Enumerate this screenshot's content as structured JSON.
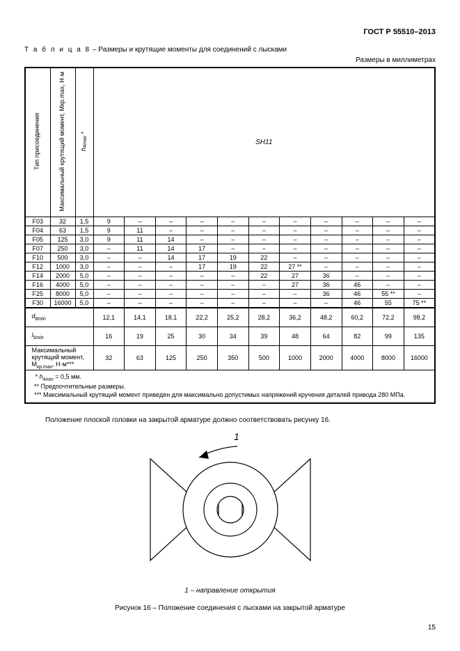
{
  "doc_id": "ГОСТ Р 55510–2013",
  "table_title_prefix": "Т а б л и ц а  8",
  "table_title_rest": " – Размеры и крутящие моменты для соединений с лысками",
  "units_label": "Размеры в миллиметрах",
  "headers": {
    "col1": "Тип присоединения",
    "col2": "Максимальный крутящий момент, Mкр.max, Н·м",
    "col3": "h4max *",
    "sh11": "SH11"
  },
  "rows": [
    {
      "c1": "F03",
      "c2": "32",
      "c3": "1,5",
      "v": [
        "9",
        "–",
        "–",
        "–",
        "–",
        "–",
        "–",
        "–",
        "–",
        "–",
        "–"
      ]
    },
    {
      "c1": "F04",
      "c2": "63",
      "c3": "1,5",
      "v": [
        "9",
        "11",
        "–",
        "–",
        "–",
        "–",
        "–",
        "–",
        "–",
        "–",
        "–"
      ]
    },
    {
      "c1": "F05",
      "c2": "125",
      "c3": "3,0",
      "v": [
        "9",
        "11",
        "14",
        "–",
        "–",
        "–",
        "–",
        "–",
        "–",
        "–",
        "–"
      ]
    },
    {
      "c1": "F07",
      "c2": "250",
      "c3": "3,0",
      "v": [
        "–",
        "11",
        "14",
        "17",
        "–",
        "–",
        "–",
        "–",
        "–",
        "–",
        "–"
      ]
    },
    {
      "c1": "F10",
      "c2": "500",
      "c3": "3,0",
      "v": [
        "–",
        "–",
        "14",
        "17",
        "19",
        "22",
        "–",
        "–",
        "–",
        "–",
        "–"
      ]
    },
    {
      "c1": "F12",
      "c2": "1000",
      "c3": "3,0",
      "v": [
        "–",
        "–",
        "–",
        "17",
        "19",
        "22",
        "27 **",
        "–",
        "–",
        "–",
        "–"
      ]
    },
    {
      "c1": "F14",
      "c2": "2000",
      "c3": "5,0",
      "v": [
        "–",
        "–",
        "–",
        "–",
        "–",
        "22",
        "27",
        "36",
        "–",
        "–",
        "–"
      ]
    },
    {
      "c1": "F16",
      "c2": "4000",
      "c3": "5,0",
      "v": [
        "–",
        "–",
        "–",
        "–",
        "–",
        "–",
        "27",
        "36",
        "46",
        "–",
        "–"
      ]
    },
    {
      "c1": "F25",
      "c2": "8000",
      "c3": "5,0",
      "v": [
        "–",
        "–",
        "–",
        "–",
        "–",
        "–",
        "–",
        "36",
        "46",
        "55 **",
        "–"
      ]
    },
    {
      "c1": "F30",
      "c2": "16000",
      "c3": "5,0",
      "v": [
        "–",
        "–",
        "–",
        "–",
        "–",
        "–",
        "–",
        "–",
        "46",
        "55",
        "75 **"
      ]
    }
  ],
  "aux_rows": [
    {
      "label": "d8min",
      "v": [
        "12,1",
        "14,1",
        "18,1",
        "22,2",
        "25,2",
        "28,2",
        "36,2",
        "48,2",
        "60,2",
        "72,2",
        "98,2"
      ]
    },
    {
      "label": "l5min",
      "v": [
        "16",
        "19",
        "25",
        "30",
        "34",
        "39",
        "48",
        "64",
        "82",
        "99",
        "135"
      ]
    },
    {
      "label": "Максимальный крутящий момент, Mкр.max, Н·м***",
      "v": [
        "32",
        "63",
        "125",
        "250",
        "350",
        "500",
        "1000",
        "2000",
        "4000",
        "8000",
        "16000"
      ]
    }
  ],
  "notes": {
    "n1": "* h4min = 0,5 мм.",
    "n2": "** Предпочтительные размеры.",
    "n3": "*** Максимальный крутящий момент приведен  для максимально допустимых напряжений кручения деталей привода  280 МПа."
  },
  "body_text": "Положение плоской головки на закрытой арматуре должно соответствовать рисунку 16.",
  "figure": {
    "label_1": "1",
    "caption_line1": "1 – направление открытия",
    "caption_line2": "Рисунок 16 – Положение соединения с лысками на закрытой арматуре",
    "stroke": "#000000",
    "bg": "#ffffff"
  },
  "page_number": "15"
}
